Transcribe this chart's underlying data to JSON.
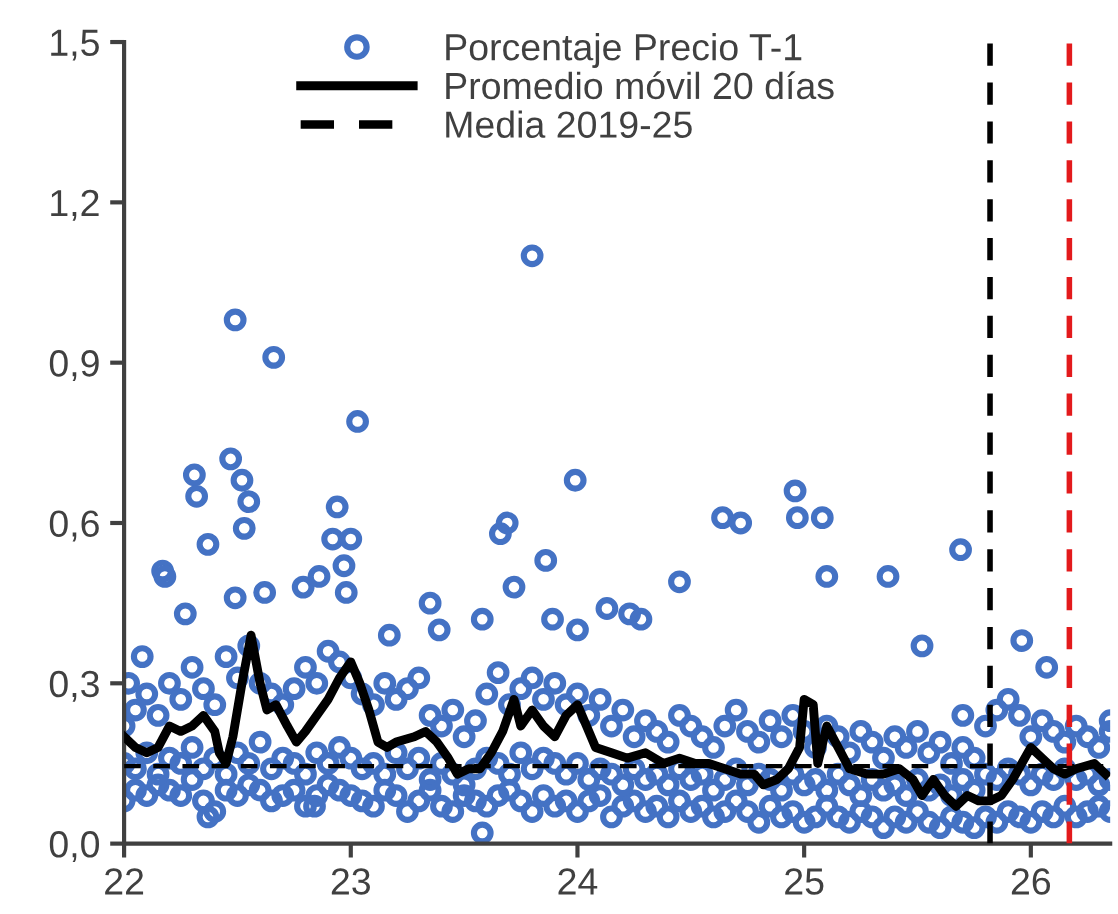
{
  "chart_data": {
    "type": "scatter",
    "legend": "top",
    "marker": "circle",
    "grid": false,
    "xlim": [
      22,
      26.35
    ],
    "ylim": [
      0,
      1.5
    ],
    "xticks": [
      22,
      23,
      24,
      25,
      26
    ],
    "yticks": [
      {
        "value": 0,
        "label": "0,0"
      },
      {
        "value": 0.3,
        "label": "0,3"
      },
      {
        "value": 0.6,
        "label": "0,6"
      },
      {
        "value": 0.9,
        "label": "0,9"
      },
      {
        "value": 1.2,
        "label": "1,2"
      },
      {
        "value": 1.5,
        "label": "1,5"
      }
    ],
    "series": [
      {
        "name": "Porcentaje Precio T-1",
        "color": "#4472c4",
        "x": [
          22,
          22.05,
          22.1,
          22.15,
          22.2,
          22.25,
          22.3,
          22.35,
          22.4,
          22.45,
          22.5,
          22.55,
          22.6,
          22.65,
          22.7,
          22.75,
          22.8,
          22.85,
          22.9,
          22.95,
          23,
          23.05,
          23.1,
          23.15,
          23.2,
          23.25,
          23.3,
          23.35,
          23.4,
          23.45,
          23.5,
          23.55,
          23.6,
          23.65,
          23.7,
          23.75,
          23.8,
          23.85,
          23.9,
          23.95,
          24,
          24.05,
          24.1,
          24.15,
          24.2,
          24.25,
          24.3,
          24.35,
          24.4,
          24.45,
          24.5,
          24.55,
          24.6,
          24.65,
          24.7,
          24.75,
          24.8,
          24.85,
          24.9,
          24.95,
          25,
          25.05,
          25.1,
          25.15,
          25.2,
          25.25,
          25.3,
          25.35,
          25.4,
          25.45,
          25.5,
          25.55,
          25.6,
          25.65,
          25.7,
          25.75,
          25.8,
          25.85,
          25.9,
          25.95,
          26,
          26.05,
          26.1,
          26.15,
          26.2,
          26.25,
          26.3,
          26.35,
          22,
          22.05,
          22.1,
          22.15,
          22.2,
          22.25,
          22.3,
          22.35,
          22.4,
          22.45,
          22.5,
          22.55,
          22.6,
          22.65,
          22.7,
          22.75,
          22.8,
          22.85,
          22.9,
          22.95,
          23,
          23.05,
          23.1,
          23.15,
          23.2,
          23.25,
          23.3,
          23.35,
          23.4,
          23.45,
          23.5,
          23.55,
          23.6,
          23.65,
          23.7,
          23.75,
          23.8,
          23.85,
          23.9,
          23.95,
          24,
          24.05,
          24.1,
          24.15,
          24.2,
          24.25,
          24.3,
          24.35,
          24.4,
          24.45,
          24.5,
          24.55,
          24.6,
          24.65,
          24.7,
          24.75,
          24.8,
          24.85,
          24.9,
          24.95,
          25,
          25.05,
          25.1,
          25.15,
          25.2,
          25.25,
          25.3,
          25.35,
          25.4,
          25.45,
          25.5,
          25.55,
          25.6,
          25.65,
          25.7,
          25.75,
          25.8,
          25.85,
          25.9,
          25.95,
          26,
          26.05,
          26.1,
          26.15,
          26.2,
          26.25,
          26.3,
          26.35,
          22,
          22.05,
          22.1,
          22.15,
          22.2,
          22.25,
          22.3,
          22.35,
          22.4,
          22.45,
          22.5,
          22.55,
          22.6,
          22.65,
          22.7,
          22.75,
          22.8,
          22.85,
          22.9,
          22.95,
          23,
          23.05,
          23.1,
          23.15,
          23.2,
          23.25,
          23.3,
          23.35,
          23.4,
          23.45,
          23.5,
          23.55,
          23.6,
          23.65,
          23.7,
          23.75,
          23.8,
          23.85,
          23.9,
          23.95,
          24,
          24.05,
          24.1,
          24.15,
          24.2,
          24.25,
          24.3,
          24.35,
          24.4,
          24.45,
          24.5,
          24.55,
          24.6,
          24.65,
          24.7,
          24.75,
          24.8,
          24.85,
          24.9,
          24.95,
          25,
          25.05,
          25.1,
          25.15,
          25.2,
          25.25,
          25.3,
          25.35,
          25.4,
          25.45,
          25.5,
          25.55,
          25.6,
          25.65,
          25.7,
          25.75,
          25.8,
          25.85,
          25.9,
          25.95,
          26,
          26.05,
          26.1,
          26.15,
          26.2,
          26.25,
          26.3,
          26.35,
          22.02,
          22.08,
          22.17,
          22.18,
          22.27,
          22.31,
          22.32,
          22.37,
          22.47,
          22.49,
          22.49,
          22.52,
          22.53,
          22.55,
          22.62,
          22.66,
          22.79,
          22.86,
          22.92,
          22.94,
          22.97,
          23,
          23.03,
          22.98,
          23.17,
          23.35,
          23.39,
          23.58,
          23.66,
          23.69,
          23.72,
          23.8,
          23.86,
          23.89,
          23.99,
          24,
          24.13,
          24.23,
          24.28,
          24.45,
          24.64,
          24.72,
          24.96,
          24.97,
          25.08,
          25.1,
          25.37,
          25.69,
          25.52,
          25.96,
          26.07,
          25.7,
          26.35,
          23.58,
          22.37,
          22.84
        ],
        "values": [
          0.08,
          0.1,
          0.09,
          0.11,
          0.1,
          0.09,
          0.12,
          0.08,
          0.06,
          0.1,
          0.09,
          0.11,
          0.1,
          0.08,
          0.09,
          0.1,
          0.07,
          0.09,
          0.11,
          0.1,
          0.09,
          0.08,
          0.07,
          0.1,
          0.09,
          0.06,
          0.08,
          0.1,
          0.07,
          0.06,
          0.09,
          0.08,
          0.07,
          0.09,
          0.1,
          0.08,
          0.06,
          0.09,
          0.07,
          0.08,
          0.06,
          0.08,
          0.09,
          0.05,
          0.07,
          0.08,
          0.06,
          0.07,
          0.05,
          0.08,
          0.06,
          0.07,
          0.05,
          0.06,
          0.08,
          0.06,
          0.04,
          0.07,
          0.05,
          0.06,
          0.04,
          0.05,
          0.07,
          0.05,
          0.04,
          0.06,
          0.05,
          0.03,
          0.05,
          0.04,
          0.06,
          0.04,
          0.03,
          0.05,
          0.04,
          0.03,
          0.05,
          0.04,
          0.06,
          0.05,
          0.04,
          0.06,
          0.05,
          0.07,
          0.05,
          0.06,
          0.07,
          0.06,
          0.22,
          0.25,
          0.28,
          0.24,
          0.3,
          0.27,
          0.33,
          0.29,
          0.26,
          0.35,
          0.31,
          0.37,
          0.3,
          0.28,
          0.26,
          0.29,
          0.33,
          0.3,
          0.36,
          0.34,
          0.31,
          0.28,
          0.26,
          0.3,
          0.27,
          0.29,
          0.31,
          0.24,
          0.22,
          0.25,
          0.2,
          0.23,
          0.28,
          0.32,
          0.26,
          0.29,
          0.31,
          0.27,
          0.3,
          0.26,
          0.28,
          0.24,
          0.27,
          0.22,
          0.25,
          0.2,
          0.23,
          0.21,
          0.19,
          0.24,
          0.22,
          0.2,
          0.18,
          0.22,
          0.25,
          0.21,
          0.19,
          0.23,
          0.2,
          0.24,
          0.21,
          0.18,
          0.22,
          0.2,
          0.17,
          0.21,
          0.19,
          0.16,
          0.2,
          0.18,
          0.21,
          0.17,
          0.19,
          0.15,
          0.18,
          0.16,
          0.22,
          0.25,
          0.27,
          0.24,
          0.2,
          0.23,
          0.21,
          0.19,
          0.22,
          0.2,
          0.18,
          0.21,
          0.15,
          0.14,
          0.17,
          0.13,
          0.16,
          0.15,
          0.18,
          0.14,
          0.16,
          0.13,
          0.17,
          0.15,
          0.19,
          0.14,
          0.16,
          0.15,
          0.13,
          0.17,
          0.15,
          0.18,
          0.16,
          0.14,
          0.15,
          0.13,
          0.17,
          0.14,
          0.16,
          0.12,
          0.15,
          0.13,
          0.11,
          0.14,
          0.16,
          0.15,
          0.13,
          0.17,
          0.14,
          0.16,
          0.15,
          0.13,
          0.15,
          0.12,
          0.14,
          0.13,
          0.11,
          0.14,
          0.12,
          0.13,
          0.11,
          0.14,
          0.12,
          0.13,
          0.1,
          0.12,
          0.14,
          0.11,
          0.13,
          0.12,
          0.1,
          0.13,
          0.11,
          0.12,
          0.1,
          0.13,
          0.11,
          0.09,
          0.12,
          0.1,
          0.11,
          0.09,
          0.12,
          0.1,
          0.11,
          0.09,
          0.12,
          0.1,
          0.13,
          0.12,
          0.14,
          0.13,
          0.11,
          0.13,
          0.12,
          0.14,
          0.12,
          0.13,
          0.11,
          0.12,
          0.3,
          0.35,
          0.51,
          0.5,
          0.43,
          0.69,
          0.65,
          0.56,
          0.72,
          0.98,
          0.46,
          0.68,
          0.59,
          0.64,
          0.47,
          0.91,
          0.48,
          0.5,
          0.57,
          0.63,
          0.52,
          0.57,
          0.79,
          0.47,
          0.39,
          0.45,
          0.4,
          0.42,
          0.58,
          0.6,
          0.48,
          1.1,
          0.53,
          0.42,
          0.68,
          0.4,
          0.44,
          0.43,
          0.42,
          0.49,
          0.61,
          0.6,
          0.66,
          0.61,
          0.61,
          0.5,
          0.5,
          0.55,
          0.37,
          0.38,
          0.33,
          0.24,
          0.23,
          0.02,
          0.05,
          0.07
        ]
      },
      {
        "name": "Promedio móvil 20 días",
        "type": "line",
        "color": "#000000",
        "marker": "none",
        "x": [
          22.0,
          22.05,
          22.1,
          22.15,
          22.2,
          22.25,
          22.3,
          22.35,
          22.4,
          22.42,
          22.45,
          22.48,
          22.52,
          22.56,
          22.6,
          22.63,
          22.67,
          22.72,
          22.76,
          22.8,
          22.85,
          22.9,
          22.95,
          23.0,
          23.04,
          23.08,
          23.12,
          23.16,
          23.2,
          23.28,
          23.33,
          23.38,
          23.43,
          23.47,
          23.52,
          23.57,
          23.62,
          23.67,
          23.72,
          23.75,
          23.8,
          23.85,
          23.9,
          23.95,
          24.0,
          24.04,
          24.08,
          24.15,
          24.22,
          24.3,
          24.38,
          24.45,
          24.52,
          24.58,
          24.65,
          24.72,
          24.78,
          24.82,
          24.88,
          24.93,
          24.98,
          25.0,
          25.04,
          25.06,
          25.1,
          25.15,
          25.2,
          25.28,
          25.35,
          25.42,
          25.48,
          25.52,
          25.57,
          25.62,
          25.67,
          25.72,
          25.77,
          25.82,
          25.87,
          25.92,
          26.0,
          26.05,
          26.1,
          26.15,
          26.2,
          26.28,
          26.33
        ],
        "values": [
          0.2,
          0.18,
          0.17,
          0.18,
          0.22,
          0.21,
          0.22,
          0.24,
          0.21,
          0.17,
          0.15,
          0.2,
          0.3,
          0.39,
          0.3,
          0.25,
          0.26,
          0.22,
          0.19,
          0.21,
          0.24,
          0.27,
          0.31,
          0.34,
          0.3,
          0.25,
          0.19,
          0.18,
          0.19,
          0.2,
          0.21,
          0.19,
          0.16,
          0.13,
          0.14,
          0.14,
          0.17,
          0.21,
          0.27,
          0.22,
          0.25,
          0.22,
          0.2,
          0.24,
          0.26,
          0.22,
          0.18,
          0.17,
          0.16,
          0.17,
          0.15,
          0.16,
          0.15,
          0.15,
          0.14,
          0.13,
          0.13,
          0.11,
          0.12,
          0.14,
          0.18,
          0.27,
          0.26,
          0.15,
          0.22,
          0.18,
          0.14,
          0.13,
          0.13,
          0.14,
          0.12,
          0.09,
          0.12,
          0.09,
          0.07,
          0.09,
          0.08,
          0.08,
          0.09,
          0.12,
          0.18,
          0.16,
          0.14,
          0.13,
          0.14,
          0.15,
          0.13
        ]
      }
    ],
    "ref_lines": [
      {
        "axis": "y",
        "value": 0.145,
        "label": "Media 2019-25",
        "color": "#000000",
        "line_style": "dashed"
      },
      {
        "axis": "x",
        "value": 25.82,
        "color": "#000000",
        "line_style": "dashed"
      },
      {
        "axis": "x",
        "value": 26.17,
        "color": "#e31a1c",
        "line_style": "dashed"
      }
    ]
  }
}
